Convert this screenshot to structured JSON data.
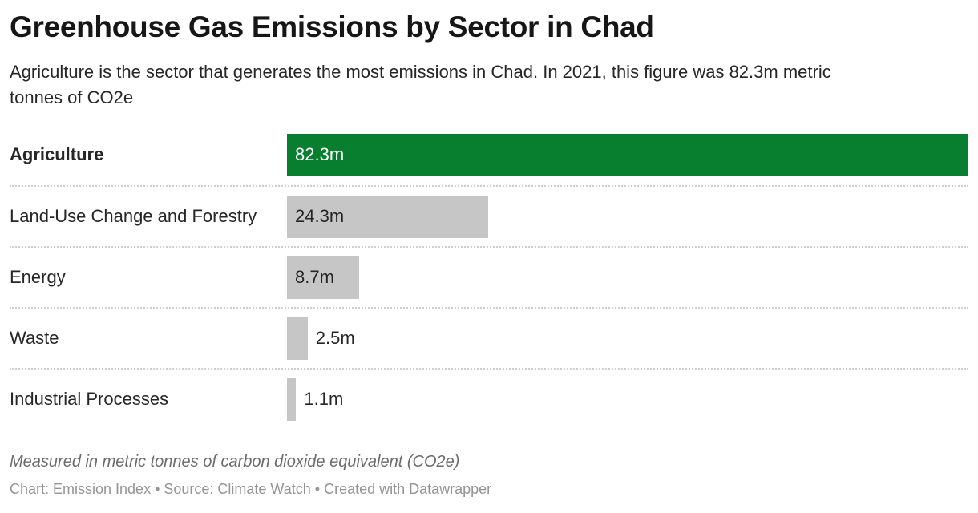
{
  "header": {
    "title": "Greenhouse Gas Emissions by Sector in Chad",
    "subtitle": "Agriculture is the sector that generates the most emissions in Chad. In 2021, this figure was 82.3m metric tonnes of CO2e"
  },
  "chart_data": {
    "type": "bar",
    "orientation": "horizontal",
    "categories": [
      "Agriculture",
      "Land-Use Change and Forestry",
      "Energy",
      "Waste",
      "Industrial Processes"
    ],
    "values": [
      82.3,
      24.3,
      8.7,
      2.5,
      1.1
    ],
    "value_labels": [
      "82.3m",
      "24.3m",
      "8.7m",
      "2.5m",
      "1.1m"
    ],
    "value_suffix": "m",
    "xlim": [
      0,
      82.3
    ],
    "highlight_category": "Agriculture",
    "bar_colors": [
      "#087f2e",
      "#c6c6c6",
      "#c6c6c6",
      "#c6c6c6",
      "#c6c6c6"
    ],
    "grid": false,
    "legend": false,
    "year_shown": "2021"
  },
  "footer": {
    "note": "Measured in metric tonnes of carbon dioxide equivalent (CO2e)",
    "attribution": "Chart: Emission Index • Source: Climate Watch • Created with Datawrapper"
  },
  "colors": {
    "highlight_bar": "#087f2e",
    "default_bar": "#c6c6c6",
    "label_on_highlight": "#ffffff",
    "label_on_default": "#262626",
    "text": "#262626",
    "note_text": "#6b6b6b",
    "attribution_text": "#949494",
    "separator": "#cfcfcf",
    "background": "#ffffff"
  }
}
